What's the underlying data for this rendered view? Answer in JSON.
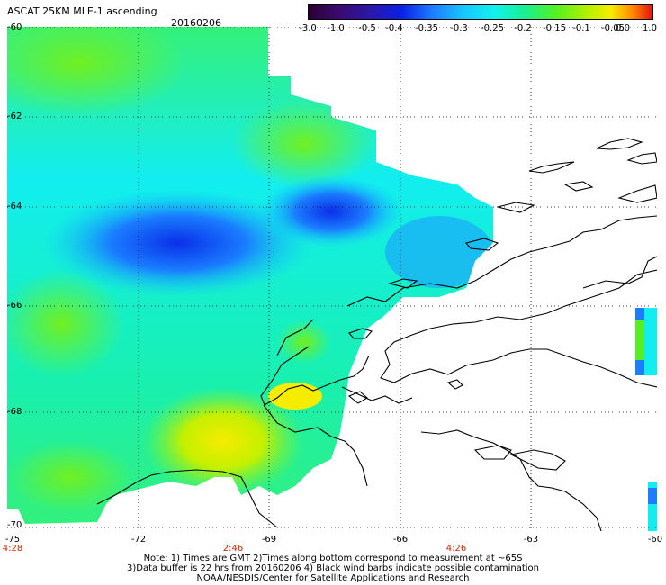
{
  "header": {
    "title": "ASCAT 25KM MLE-1 ascending",
    "date": "20160206"
  },
  "colorbar": {
    "labels": [
      "-3.0",
      "-1.0",
      "-0.5",
      "-0.4",
      "-0.35",
      "-0.3",
      "-0.25",
      "-0.2",
      "-0.15",
      "-0.1",
      "-0.05",
      "0.0",
      "1.0"
    ],
    "colors": [
      "#2a0033",
      "#2b17a8",
      "#1d7cff",
      "#12f2ee",
      "#55f022",
      "#f7ec00",
      "#e41010"
    ]
  },
  "axes": {
    "lat_labels": [
      "-60",
      "-62",
      "-64",
      "-66",
      "-68",
      "-70"
    ],
    "lon_labels": [
      "-75",
      "-72",
      "-69",
      "-66",
      "-63",
      "-60"
    ],
    "time_labels": [
      "4:28",
      "2:46",
      "4:26"
    ]
  },
  "notes": [
    "Note: 1) Times are GMT 2)Times along bottom correspond to measurement at ~65S",
    "3)Data buffer is 22 hrs from 20160206 4) Black wind barbs indicate possible contamination",
    "NOAA/NESDIS/Center for Satellite Applications and Research"
  ]
}
